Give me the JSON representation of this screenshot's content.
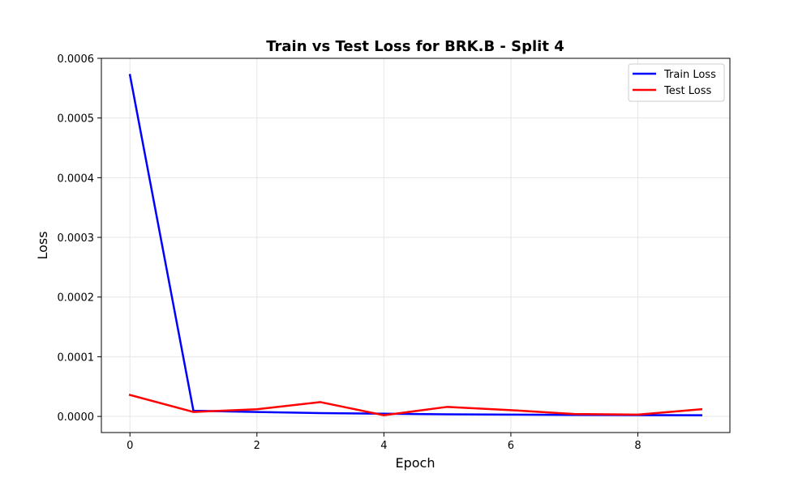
{
  "chart_data": {
    "type": "line",
    "title": "Train vs Test Loss for BRK.B - Split 4",
    "xlabel": "Epoch",
    "ylabel": "Loss",
    "x": [
      0,
      1,
      2,
      3,
      4,
      5,
      6,
      7,
      8,
      9
    ],
    "xlim": [
      -0.45,
      9.45
    ],
    "ylim": [
      -2.7e-05,
      0.0006
    ],
    "xticks": [
      0,
      2,
      4,
      6,
      8
    ],
    "xtick_labels": [
      "0",
      "2",
      "4",
      "6",
      "8"
    ],
    "yticks": [
      0,
      0.0001,
      0.0002,
      0.0003,
      0.0004,
      0.0005,
      0.0006
    ],
    "ytick_labels": [
      "0.0000",
      "0.0001",
      "0.0002",
      "0.0003",
      "0.0004",
      "0.0005",
      "0.0006"
    ],
    "grid": true,
    "legend_position": "top-right",
    "series": [
      {
        "name": "Train Loss",
        "color": "#0000ff",
        "values": [
          0.000572,
          9.5e-06,
          7.5e-06,
          5.5e-06,
          4.5e-06,
          3.5e-06,
          3e-06,
          2.5e-06,
          2.2e-06,
          2e-06
        ]
      },
      {
        "name": "Test Loss",
        "color": "#ff0000",
        "values": [
          3.6e-05,
          7.5e-06,
          1.2e-05,
          2.4e-05,
          2e-06,
          1.6e-05,
          1.05e-05,
          4e-06,
          3e-06,
          1.2e-05
        ]
      }
    ]
  }
}
